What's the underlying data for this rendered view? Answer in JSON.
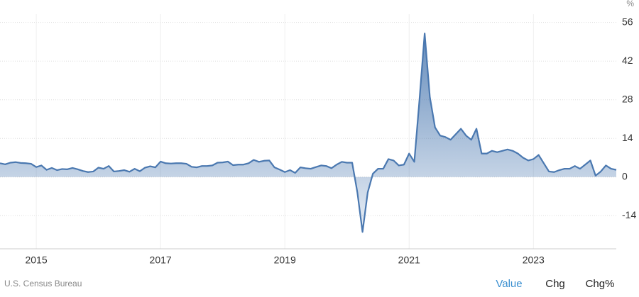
{
  "chart_data": {
    "type": "area",
    "unit": "%",
    "source": "U.S. Census Bureau",
    "tabs": [
      "Value",
      "Chg",
      "Chg%"
    ],
    "active_tab": 0,
    "color": "#4a78b0",
    "ylim": [
      -26,
      59
    ],
    "yticks": [
      -14,
      0,
      14,
      28,
      42,
      56
    ],
    "grid": true,
    "categories": [
      null,
      null,
      null,
      null,
      null,
      null,
      null,
      "2015",
      null,
      null,
      null,
      null,
      null,
      null,
      null,
      null,
      null,
      null,
      null,
      null,
      null,
      null,
      null,
      null,
      null,
      null,
      null,
      null,
      null,
      null,
      null,
      "2017",
      null,
      null,
      null,
      null,
      null,
      null,
      null,
      null,
      null,
      null,
      null,
      null,
      null,
      null,
      null,
      null,
      null,
      null,
      null,
      null,
      null,
      null,
      null,
      "2019",
      null,
      null,
      null,
      null,
      null,
      null,
      null,
      null,
      null,
      null,
      null,
      null,
      null,
      null,
      null,
      null,
      null,
      null,
      null,
      null,
      null,
      null,
      null,
      "2021",
      null,
      null,
      null,
      null,
      null,
      null,
      null,
      null,
      null,
      null,
      null,
      null,
      null,
      null,
      null,
      null,
      null,
      null,
      null,
      null,
      null,
      null,
      null,
      "2023",
      null,
      null,
      null,
      null,
      null,
      null,
      null,
      null,
      null,
      null,
      null,
      null,
      null,
      null,
      null,
      null
    ],
    "values": [
      5,
      4.6,
      5.2,
      5.4,
      5.1,
      5,
      4.8,
      3.6,
      4.2,
      2.6,
      3.3,
      2.5,
      2.9,
      2.8,
      3.3,
      2.8,
      2.2,
      1.8,
      2.0,
      3.4,
      3.0,
      4.0,
      2.0,
      2.2,
      2.5,
      1.9,
      3.0,
      2.1,
      3.4,
      3.9,
      3.5,
      5.6,
      5.0,
      4.9,
      5.0,
      5.0,
      4.8,
      3.7,
      3.5,
      4.0,
      4.0,
      4.2,
      5.2,
      5.3,
      5.6,
      4.3,
      4.5,
      4.5,
      5.0,
      6.2,
      5.5,
      5.9,
      6.0,
      3.5,
      2.7,
      1.8,
      2.5,
      1.5,
      3.5,
      3.2,
      3.0,
      3.6,
      4.2,
      4.0,
      3.2,
      4.5,
      5.5,
      5.2,
      5.2,
      -5.5,
      -19.9,
      -5.6,
      1.2,
      3.0,
      3.0,
      6.5,
      6.0,
      4.2,
      4.5,
      8.5,
      5.5,
      28,
      52,
      29,
      18,
      15,
      14.5,
      13.5,
      15.5,
      17.5,
      15,
      13.5,
      17.5,
      8.5,
      8.5,
      9.5,
      9,
      9.5,
      10,
      9.5,
      8.5,
      7,
      6,
      6.5,
      8,
      5,
      2,
      1.8,
      2.5,
      3,
      3,
      4,
      3,
      4.5,
      6,
      0.5,
      2,
      4.2,
      3,
      2.6
    ]
  }
}
